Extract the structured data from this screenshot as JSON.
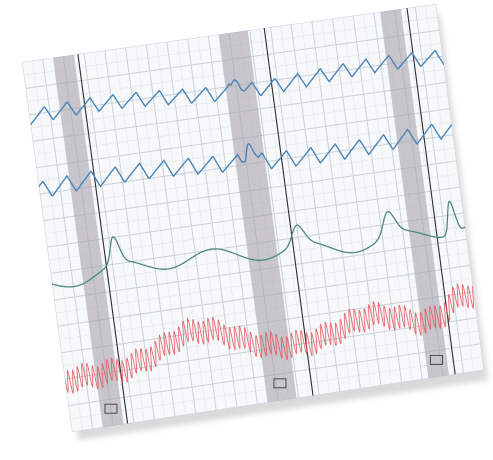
{
  "image": {
    "subject": "polygraph-chart-paper",
    "colors": {
      "background": "#ffffff",
      "paper": "#f7f8f9",
      "grid_major": "#c9d3dc",
      "grid_minor": "#e3e8ee",
      "shade_band": "#a9a4ae",
      "marker_line": "#2d2d2d",
      "trace_blue": "#4b86b8",
      "trace_green": "#4f8b78",
      "trace_red": "#e4545a"
    },
    "traces": [
      "pneumo-upper",
      "pneumo-lower",
      "cardio-green",
      "gsr-red"
    ],
    "band_marks": [
      "",
      "",
      ""
    ]
  }
}
